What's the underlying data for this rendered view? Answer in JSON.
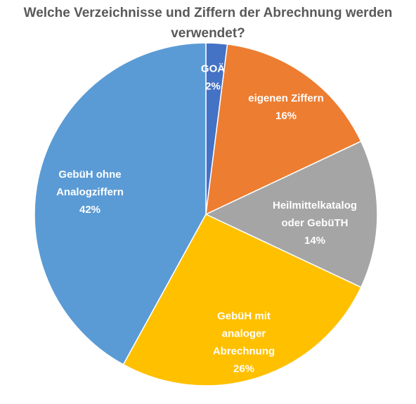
{
  "chart_data": {
    "type": "pie",
    "title_lines": [
      "Welche Verzeichnisse und Ziffern der Abrechnung werden",
      "verwendet?"
    ],
    "slices": [
      {
        "label_lines": [
          "GOÄ"
        ],
        "value": 2,
        "value_label": "2%",
        "color": "#4472C4"
      },
      {
        "label_lines": [
          "eigenen Ziffern"
        ],
        "value": 16,
        "value_label": "16%",
        "color": "#ED7D31"
      },
      {
        "label_lines": [
          "Heilmittelkatalog",
          "oder GebüTH"
        ],
        "value": 14,
        "value_label": "14%",
        "color": "#A5A5A5"
      },
      {
        "label_lines": [
          "GebüH mit",
          "analoger",
          "Abrechnung"
        ],
        "value": 26,
        "value_label": "26%",
        "color": "#FFC000"
      },
      {
        "label_lines": [
          "GebüH ohne",
          "Analogziffern"
        ],
        "value": 42,
        "value_label": "42%",
        "color": "#5B9BD5"
      }
    ]
  }
}
